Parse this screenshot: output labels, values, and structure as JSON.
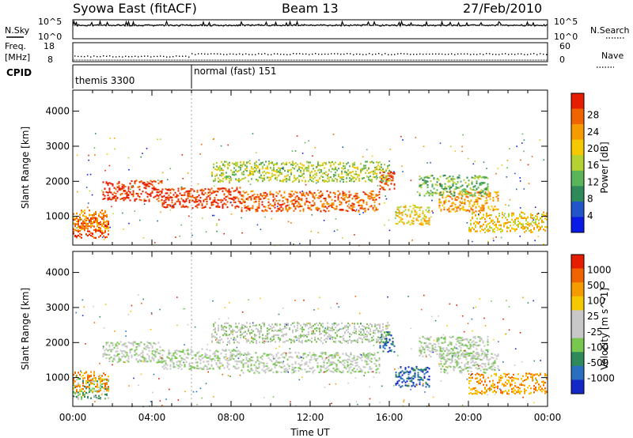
{
  "header": {
    "station": "Syowa East (fitACF)",
    "beam": "Beam 13",
    "date": "27/Feb/2010"
  },
  "top_panels": {
    "nsky_label": "N.Sky",
    "nsky_top": "10^5",
    "nsky_bottom": "10^0",
    "nsearch_label": "N.Search",
    "nsearch_top": "10^5",
    "nsearch_bottom": "10^0",
    "freq_label_1": "Freq.",
    "freq_label_2": "[MHz]",
    "freq_top": "18",
    "freq_bottom": "8",
    "nave_label": "Nave",
    "nave_top": "60",
    "nave_bottom": "0",
    "cpid_label": "CPID",
    "cpid_modes": [
      {
        "name": "themis 3300",
        "start_hour": 0
      },
      {
        "name": "normal (fast) 151",
        "start_hour": 6
      }
    ]
  },
  "chart_data": [
    {
      "type": "heatmap",
      "title": "Power",
      "ylabel": "Slant Range [km]",
      "xlabel": "Time UT",
      "ylim": [
        180,
        4600
      ],
      "yticks": [
        1000,
        2000,
        3000,
        4000
      ],
      "xlim_hours": [
        0,
        24
      ],
      "xtick_labels": [
        "00:00",
        "04:00",
        "08:00",
        "12:00",
        "16:00",
        "20:00",
        "00:00"
      ],
      "colorbar": {
        "label": "Power [dB]",
        "ticks": [
          "4",
          "8",
          "12",
          "16",
          "20",
          "24",
          "28"
        ],
        "colors": [
          "#0a1ae6",
          "#2255c8",
          "#2e8a5a",
          "#5ab45a",
          "#b4d232",
          "#f5c800",
          "#f59b00",
          "#f06400",
          "#e61e00"
        ]
      },
      "bands": [
        {
          "start_hour": 0.0,
          "end_hour": 1.8,
          "range_km": 700,
          "level": 8
        },
        {
          "start_hour": 0.0,
          "end_hour": 1.8,
          "range_km": 900,
          "level": 6
        },
        {
          "start_hour": 1.5,
          "end_hour": 4.5,
          "range_km": 1750,
          "level": 8
        },
        {
          "start_hour": 4.5,
          "end_hour": 8.5,
          "range_km": 1550,
          "level": 8
        },
        {
          "start_hour": 8.5,
          "end_hour": 15.5,
          "range_km": 1450,
          "level": 7
        },
        {
          "start_hour": 15.5,
          "end_hour": 16.3,
          "range_km": 2050,
          "level": 8
        },
        {
          "start_hour": 16.3,
          "end_hour": 18.0,
          "range_km": 1050,
          "level": 5
        },
        {
          "start_hour": 18.5,
          "end_hour": 21.5,
          "range_km": 1450,
          "level": 6
        },
        {
          "start_hour": 20.0,
          "end_hour": 24.0,
          "range_km": 850,
          "level": 5
        },
        {
          "start_hour": 7.0,
          "end_hour": 16.0,
          "range_km": 2300,
          "level": 4
        },
        {
          "start_hour": 17.5,
          "end_hour": 21.0,
          "range_km": 1900,
          "level": 3
        }
      ]
    },
    {
      "type": "heatmap",
      "title": "Velocity",
      "ylabel": "Slant Range [km]",
      "xlabel": "Time UT",
      "ylim": [
        180,
        4600
      ],
      "yticks": [
        1000,
        2000,
        3000,
        4000
      ],
      "xlim_hours": [
        0,
        24
      ],
      "xtick_labels": [
        "00:00",
        "04:00",
        "08:00",
        "12:00",
        "16:00",
        "20:00",
        "00:00"
      ],
      "colorbar": {
        "label": "Velocity [m s^-1]",
        "ticks": [
          "1000",
          "500",
          "100",
          "25",
          "-25",
          "-100",
          "-500",
          "-1000"
        ],
        "colors": [
          "#1428c8",
          "#2a6fbf",
          "#2e8a5a",
          "#78c850",
          "#c8c8c8",
          "#c8c8c8",
          "#f5c800",
          "#f59b00",
          "#f06400",
          "#e61e00"
        ]
      },
      "bands": [
        {
          "start_hour": 0.0,
          "end_hour": 1.8,
          "range_km": 700,
          "level": 3
        },
        {
          "start_hour": 0.0,
          "end_hour": 1.8,
          "range_km": 900,
          "level": 7
        },
        {
          "start_hour": 1.5,
          "end_hour": 4.5,
          "range_km": 1750,
          "level": 4
        },
        {
          "start_hour": 4.5,
          "end_hour": 8.5,
          "range_km": 1550,
          "level": 4
        },
        {
          "start_hour": 8.5,
          "end_hour": 15.5,
          "range_km": 1450,
          "level": 4
        },
        {
          "start_hour": 15.5,
          "end_hour": 16.3,
          "range_km": 2050,
          "level": 1
        },
        {
          "start_hour": 16.3,
          "end_hour": 18.0,
          "range_km": 1050,
          "level": 1
        },
        {
          "start_hour": 18.5,
          "end_hour": 21.5,
          "range_km": 1450,
          "level": 4
        },
        {
          "start_hour": 20.0,
          "end_hour": 24.0,
          "range_km": 850,
          "level": 7
        },
        {
          "start_hour": 7.0,
          "end_hour": 16.0,
          "range_km": 2300,
          "level": 4
        },
        {
          "start_hour": 17.5,
          "end_hour": 21.0,
          "range_km": 1900,
          "level": 4
        }
      ]
    }
  ]
}
